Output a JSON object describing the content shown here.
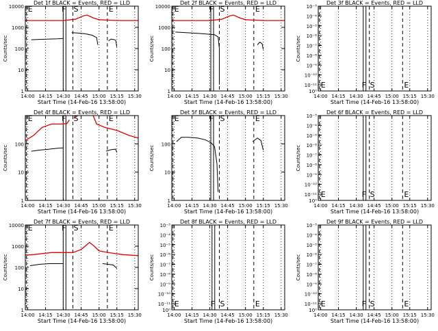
{
  "figure": {
    "xlabel": "Start Time (14-Feb-16 13:58:00)",
    "ylabel": "Counts/sec",
    "x_tick_labels": [
      "14:00",
      "14:15",
      "14:30",
      "14:45",
      "15:00",
      "15:15",
      "15:30"
    ],
    "colors": {
      "events": "#000000",
      "lld": "#e00000",
      "axes": "#000000",
      "background": "#ffffff"
    }
  },
  "chart_data": [
    {
      "id": "det1f",
      "type": "line",
      "title": "Det 1f BLACK = Events, RED = LLD",
      "ylabel": "Counts/sec",
      "xlabel": "Start Time (14-Feb-16 13:58:00)",
      "yscale": "log",
      "ylim": [
        1,
        10000
      ],
      "y_tick_labels": [
        "1",
        "10",
        "100",
        "1000",
        "10000"
      ],
      "markers": [
        {
          "label": "E",
          "t": "13:59"
        },
        {
          "label": "F",
          "t": "14:31"
        },
        {
          "label": "S",
          "t": "14:38"
        },
        {
          "label": "E",
          "t": "15:07"
        }
      ],
      "series": [
        {
          "name": "Events",
          "segments": [
            [
              [
                "14:03",
                260
              ],
              [
                "14:10",
                270
              ],
              [
                "14:18",
                280
              ],
              [
                "14:25",
                290
              ],
              [
                "14:30",
                300
              ]
            ],
            [
              [
                "14:37",
                560
              ],
              [
                "14:42",
                540
              ],
              [
                "14:48",
                500
              ],
              [
                "14:54",
                430
              ],
              [
                "14:58",
                330
              ],
              [
                "14:59",
                150
              ]
            ],
            [
              [
                "15:08",
                230
              ],
              [
                "15:10",
                280
              ],
              [
                "15:12",
                270
              ],
              [
                "15:14",
                250
              ],
              [
                "15:15",
                120
              ]
            ]
          ]
        },
        {
          "name": "LLD",
          "segments": [
            [
              [
                "13:58",
                2100
              ],
              [
                "14:15",
                2100
              ],
              [
                "14:30",
                2100
              ],
              [
                "14:40",
                2400
              ],
              [
                "14:47",
                3500
              ],
              [
                "14:50",
                3800
              ],
              [
                "14:55",
                2800
              ],
              [
                "15:00",
                2300
              ],
              [
                "15:15",
                2100
              ],
              [
                "15:33",
                2100
              ]
            ]
          ]
        }
      ]
    },
    {
      "id": "det2f",
      "type": "line",
      "title": "Det 2f BLACK = Events, RED = LLD",
      "ylabel": "Counts/sec",
      "xlabel": "Start Time (14-Feb-16 13:58:00)",
      "yscale": "log",
      "ylim": [
        1,
        10000
      ],
      "y_tick_labels": [
        "1",
        "10",
        "100",
        "1000",
        "10000"
      ],
      "markers": [
        {
          "label": "E",
          "t": "13:59"
        },
        {
          "label": "F",
          "t": "14:32"
        },
        {
          "label": "S",
          "t": "14:38"
        },
        {
          "label": "E",
          "t": "15:07"
        }
      ],
      "series": [
        {
          "name": "Events",
          "segments": [
            [
              [
                "14:01",
                600
              ],
              [
                "14:10",
                560
              ],
              [
                "14:20",
                520
              ],
              [
                "14:28",
                480
              ],
              [
                "14:34",
                450
              ],
              [
                "14:37",
                350
              ],
              [
                "14:38",
                100
              ],
              [
                "14:38",
                2
              ]
            ],
            [
              [
                "15:10",
                150
              ],
              [
                "15:12",
                200
              ],
              [
                "15:14",
                170
              ],
              [
                "15:15",
                90
              ]
            ]
          ]
        },
        {
          "name": "LLD",
          "segments": [
            [
              [
                "13:58",
                2100
              ],
              [
                "14:15",
                2100
              ],
              [
                "14:30",
                2100
              ],
              [
                "14:40",
                2400
              ],
              [
                "14:47",
                3500
              ],
              [
                "14:50",
                3800
              ],
              [
                "14:55",
                2800
              ],
              [
                "15:00",
                2300
              ],
              [
                "15:15",
                2100
              ],
              [
                "15:33",
                2100
              ]
            ]
          ]
        }
      ]
    },
    {
      "id": "det3f",
      "type": "line",
      "title": "Det 3f BLACK = Events, RED = LLD",
      "ylabel": "Counts/sec",
      "xlabel": "Start Time (14-Feb-16 13:58:00)",
      "yscale": "log",
      "ylim": [
        1e-11,
        0.001
      ],
      "y_tick_labels": [
        "10⁰",
        "10⁻¹¹",
        "10⁻¹⁰",
        "10⁻⁹",
        "10⁻⁸",
        "10⁻⁷",
        "10⁻⁶",
        "10⁻⁵",
        "10⁻⁴",
        "10⁻³"
      ],
      "markers": [
        {
          "label": "E",
          "t": "13:59"
        },
        {
          "label": "F",
          "t": "14:37"
        },
        {
          "label": "S",
          "t": "14:41"
        },
        {
          "label": "E",
          "t": "15:09"
        }
      ],
      "series": []
    },
    {
      "id": "det4f",
      "type": "line",
      "title": "Det 4f BLACK = Events, RED = LLD",
      "ylabel": "Counts/sec",
      "xlabel": "Start Time (14-Feb-16 13:58:00)",
      "yscale": "log",
      "ylim": [
        1,
        1000
      ],
      "y_tick_labels": [
        "1",
        "10",
        "100"
      ],
      "markers": [
        {
          "label": "E",
          "t": "13:59"
        },
        {
          "label": "F",
          "t": "14:31"
        },
        {
          "label": "S",
          "t": "14:38"
        },
        {
          "label": "E",
          "t": "15:07"
        }
      ],
      "series": [
        {
          "name": "Events",
          "segments": [
            [
              [
                "14:03",
                55
              ],
              [
                "14:10",
                60
              ],
              [
                "14:18",
                65
              ],
              [
                "14:25",
                70
              ],
              [
                "14:30",
                72
              ]
            ],
            [
              [
                "15:06",
                55
              ],
              [
                "15:10",
                62
              ],
              [
                "15:14",
                65
              ],
              [
                "15:15",
                50
              ]
            ]
          ]
        },
        {
          "name": "LLD",
          "segments": [
            [
              [
                "13:58",
                130
              ],
              [
                "14:05",
                200
              ],
              [
                "14:12",
                380
              ],
              [
                "14:20",
                500
              ],
              [
                "14:28",
                500
              ],
              [
                "14:33",
                520
              ],
              [
                "14:35",
                700
              ]
            ],
            [
              [
                "14:39",
                800
              ],
              [
                "14:42",
                1000
              ]
            ],
            [
              [
                "14:55",
                1000
              ],
              [
                "14:58",
                500
              ],
              [
                "15:05",
                380
              ],
              [
                "15:15",
                300
              ],
              [
                "15:25",
                200
              ],
              [
                "15:33",
                160
              ]
            ]
          ]
        }
      ]
    },
    {
      "id": "det5f",
      "type": "line",
      "title": "Det 5f BLACK = Events, RED = LLD",
      "ylabel": "Counts/sec",
      "xlabel": "Start Time (14-Feb-16 13:58:00)",
      "yscale": "log",
      "ylim": [
        1,
        1000
      ],
      "y_tick_labels": [
        "1",
        "10",
        "100"
      ],
      "markers": [
        {
          "label": "E",
          "t": "13:59"
        },
        {
          "label": "F",
          "t": "14:32"
        },
        {
          "label": "S",
          "t": "14:38"
        },
        {
          "label": "E",
          "t": "15:07"
        }
      ],
      "series": [
        {
          "name": "Events",
          "segments": [
            [
              [
                "14:02",
                120
              ],
              [
                "14:06",
                170
              ],
              [
                "14:12",
                170
              ],
              [
                "14:20",
                160
              ],
              [
                "14:26",
                140
              ],
              [
                "14:31",
                110
              ],
              [
                "14:34",
                80
              ],
              [
                "14:36",
                20
              ],
              [
                "14:37",
                2
              ]
            ],
            [
              [
                "15:06",
                120
              ],
              [
                "15:10",
                160
              ],
              [
                "15:13",
                130
              ],
              [
                "15:15",
                60
              ]
            ]
          ]
        }
      ]
    },
    {
      "id": "det6f",
      "type": "line",
      "title": "Det 6f BLACK = Events, RED = LLD",
      "ylabel": "Counts/sec",
      "xlabel": "Start Time (14-Feb-16 13:58:00)",
      "yscale": "log",
      "ylim": [
        1e-11,
        0.001
      ],
      "y_tick_labels": [
        "10⁰",
        "10⁻¹¹",
        "10⁻¹⁰",
        "10⁻⁹",
        "10⁻⁸",
        "10⁻⁷",
        "10⁻⁶",
        "10⁻⁵",
        "10⁻⁴",
        "10⁻³"
      ],
      "markers": [
        {
          "label": "E",
          "t": "13:59"
        },
        {
          "label": "F",
          "t": "14:37"
        },
        {
          "label": "S",
          "t": "14:41"
        },
        {
          "label": "E",
          "t": "15:09"
        }
      ],
      "series": []
    },
    {
      "id": "det7f",
      "type": "line",
      "title": "Det 7f BLACK = Events, RED = LLD",
      "ylabel": "Counts/sec",
      "xlabel": "Start Time (14-Feb-16 13:58:00)",
      "yscale": "log",
      "ylim": [
        1,
        10000
      ],
      "y_tick_labels": [
        "1",
        "10",
        "100",
        "1000",
        "10000"
      ],
      "markers": [
        {
          "label": "E",
          "t": "13:59"
        },
        {
          "label": "F",
          "t": "14:31"
        },
        {
          "label": "S",
          "t": "14:38"
        },
        {
          "label": "E",
          "t": "15:07"
        }
      ],
      "series": [
        {
          "name": "Events",
          "segments": [
            [
              [
                "14:02",
                120
              ],
              [
                "14:10",
                140
              ],
              [
                "14:18",
                150
              ],
              [
                "14:25",
                150
              ],
              [
                "14:30",
                150
              ]
            ],
            [
              [
                "15:03",
                150
              ],
              [
                "15:08",
                140
              ],
              [
                "15:12",
                130
              ],
              [
                "15:15",
                90
              ]
            ]
          ]
        },
        {
          "name": "LLD",
          "segments": [
            [
              [
                "13:58",
                380
              ],
              [
                "14:05",
                400
              ],
              [
                "14:12",
                450
              ],
              [
                "14:20",
                500
              ],
              [
                "14:30",
                500
              ],
              [
                "14:38",
                500
              ],
              [
                "14:45",
                700
              ],
              [
                "14:52",
                1500
              ],
              [
                "14:56",
                1000
              ],
              [
                "15:00",
                600
              ],
              [
                "15:10",
                480
              ],
              [
                "15:20",
                400
              ],
              [
                "15:33",
                360
              ]
            ]
          ]
        }
      ]
    },
    {
      "id": "det8f",
      "type": "line",
      "title": "Det 8f BLACK = Events, RED = LLD",
      "ylabel": "Counts/sec",
      "xlabel": "Start Time (14-Feb-16 13:58:00)",
      "yscale": "log",
      "ylim": [
        1e-11,
        0.001
      ],
      "y_tick_labels": [
        "10⁰",
        "10⁻¹¹",
        "10⁻¹⁰",
        "10⁻⁹",
        "10⁻⁸",
        "10⁻⁷",
        "10⁻⁶",
        "10⁻⁵",
        "10⁻⁴",
        "10⁻³"
      ],
      "markers": [
        {
          "label": "E",
          "t": "13:59"
        },
        {
          "label": "F",
          "t": "14:33"
        },
        {
          "label": "S",
          "t": "14:38"
        },
        {
          "label": "E",
          "t": "15:07"
        }
      ],
      "series": []
    },
    {
      "id": "det9f",
      "type": "line",
      "title": "Det 9f BLACK = Events, RED = LLD",
      "ylabel": "Counts/sec",
      "xlabel": "Start Time (14-Feb-16 13:58:00)",
      "yscale": "log",
      "ylim": [
        1e-11,
        0.001
      ],
      "y_tick_labels": [
        "10⁰",
        "10⁻¹¹",
        "10⁻¹⁰",
        "10⁻⁹",
        "10⁻⁸",
        "10⁻⁷",
        "10⁻⁶",
        "10⁻⁵",
        "10⁻⁴",
        "10⁻³"
      ],
      "markers": [
        {
          "label": "E",
          "t": "13:59"
        },
        {
          "label": "F",
          "t": "14:37"
        },
        {
          "label": "S",
          "t": "14:41"
        },
        {
          "label": "E",
          "t": "15:09"
        }
      ],
      "series": []
    }
  ]
}
